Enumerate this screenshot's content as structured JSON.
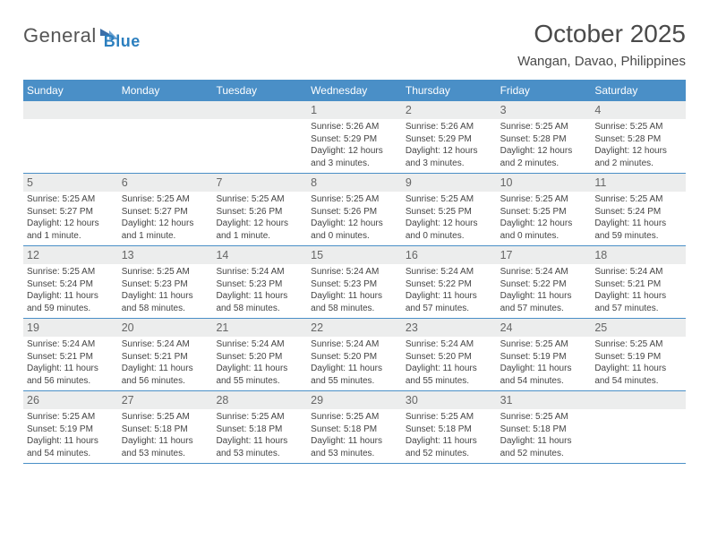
{
  "brand": {
    "word1": "General",
    "word2": "Blue"
  },
  "title": "October 2025",
  "location": "Wangan, Davao, Philippines",
  "colors": {
    "header_bg": "#4a8fc7",
    "header_text": "#ffffff",
    "grey_row": "#eceded",
    "rule": "#4a8fc7",
    "title_text": "#4a4a4a",
    "body_text": "#444444",
    "daynum_text": "#666666",
    "logo_grey": "#555555",
    "logo_blue": "#2c7fbf"
  },
  "typography": {
    "title_fontsize": 28,
    "location_fontsize": 15,
    "dow_fontsize": 12,
    "daynum_fontsize": 12.5,
    "body_fontsize": 10,
    "logo_fontsize": 22
  },
  "dow": [
    "Sunday",
    "Monday",
    "Tuesday",
    "Wednesday",
    "Thursday",
    "Friday",
    "Saturday"
  ],
  "weeks": [
    [
      null,
      null,
      null,
      {
        "n": "1",
        "sr": "5:26 AM",
        "ss": "5:29 PM",
        "dl": "12 hours and 3 minutes."
      },
      {
        "n": "2",
        "sr": "5:26 AM",
        "ss": "5:29 PM",
        "dl": "12 hours and 3 minutes."
      },
      {
        "n": "3",
        "sr": "5:25 AM",
        "ss": "5:28 PM",
        "dl": "12 hours and 2 minutes."
      },
      {
        "n": "4",
        "sr": "5:25 AM",
        "ss": "5:28 PM",
        "dl": "12 hours and 2 minutes."
      }
    ],
    [
      {
        "n": "5",
        "sr": "5:25 AM",
        "ss": "5:27 PM",
        "dl": "12 hours and 1 minute."
      },
      {
        "n": "6",
        "sr": "5:25 AM",
        "ss": "5:27 PM",
        "dl": "12 hours and 1 minute."
      },
      {
        "n": "7",
        "sr": "5:25 AM",
        "ss": "5:26 PM",
        "dl": "12 hours and 1 minute."
      },
      {
        "n": "8",
        "sr": "5:25 AM",
        "ss": "5:26 PM",
        "dl": "12 hours and 0 minutes."
      },
      {
        "n": "9",
        "sr": "5:25 AM",
        "ss": "5:25 PM",
        "dl": "12 hours and 0 minutes."
      },
      {
        "n": "10",
        "sr": "5:25 AM",
        "ss": "5:25 PM",
        "dl": "12 hours and 0 minutes."
      },
      {
        "n": "11",
        "sr": "5:25 AM",
        "ss": "5:24 PM",
        "dl": "11 hours and 59 minutes."
      }
    ],
    [
      {
        "n": "12",
        "sr": "5:25 AM",
        "ss": "5:24 PM",
        "dl": "11 hours and 59 minutes."
      },
      {
        "n": "13",
        "sr": "5:25 AM",
        "ss": "5:23 PM",
        "dl": "11 hours and 58 minutes."
      },
      {
        "n": "14",
        "sr": "5:24 AM",
        "ss": "5:23 PM",
        "dl": "11 hours and 58 minutes."
      },
      {
        "n": "15",
        "sr": "5:24 AM",
        "ss": "5:23 PM",
        "dl": "11 hours and 58 minutes."
      },
      {
        "n": "16",
        "sr": "5:24 AM",
        "ss": "5:22 PM",
        "dl": "11 hours and 57 minutes."
      },
      {
        "n": "17",
        "sr": "5:24 AM",
        "ss": "5:22 PM",
        "dl": "11 hours and 57 minutes."
      },
      {
        "n": "18",
        "sr": "5:24 AM",
        "ss": "5:21 PM",
        "dl": "11 hours and 57 minutes."
      }
    ],
    [
      {
        "n": "19",
        "sr": "5:24 AM",
        "ss": "5:21 PM",
        "dl": "11 hours and 56 minutes."
      },
      {
        "n": "20",
        "sr": "5:24 AM",
        "ss": "5:21 PM",
        "dl": "11 hours and 56 minutes."
      },
      {
        "n": "21",
        "sr": "5:24 AM",
        "ss": "5:20 PM",
        "dl": "11 hours and 55 minutes."
      },
      {
        "n": "22",
        "sr": "5:24 AM",
        "ss": "5:20 PM",
        "dl": "11 hours and 55 minutes."
      },
      {
        "n": "23",
        "sr": "5:24 AM",
        "ss": "5:20 PM",
        "dl": "11 hours and 55 minutes."
      },
      {
        "n": "24",
        "sr": "5:25 AM",
        "ss": "5:19 PM",
        "dl": "11 hours and 54 minutes."
      },
      {
        "n": "25",
        "sr": "5:25 AM",
        "ss": "5:19 PM",
        "dl": "11 hours and 54 minutes."
      }
    ],
    [
      {
        "n": "26",
        "sr": "5:25 AM",
        "ss": "5:19 PM",
        "dl": "11 hours and 54 minutes."
      },
      {
        "n": "27",
        "sr": "5:25 AM",
        "ss": "5:18 PM",
        "dl": "11 hours and 53 minutes."
      },
      {
        "n": "28",
        "sr": "5:25 AM",
        "ss": "5:18 PM",
        "dl": "11 hours and 53 minutes."
      },
      {
        "n": "29",
        "sr": "5:25 AM",
        "ss": "5:18 PM",
        "dl": "11 hours and 53 minutes."
      },
      {
        "n": "30",
        "sr": "5:25 AM",
        "ss": "5:18 PM",
        "dl": "11 hours and 52 minutes."
      },
      {
        "n": "31",
        "sr": "5:25 AM",
        "ss": "5:18 PM",
        "dl": "11 hours and 52 minutes."
      },
      null
    ]
  ],
  "labels": {
    "sunrise": "Sunrise: ",
    "sunset": "Sunset: ",
    "daylight": "Daylight: "
  }
}
